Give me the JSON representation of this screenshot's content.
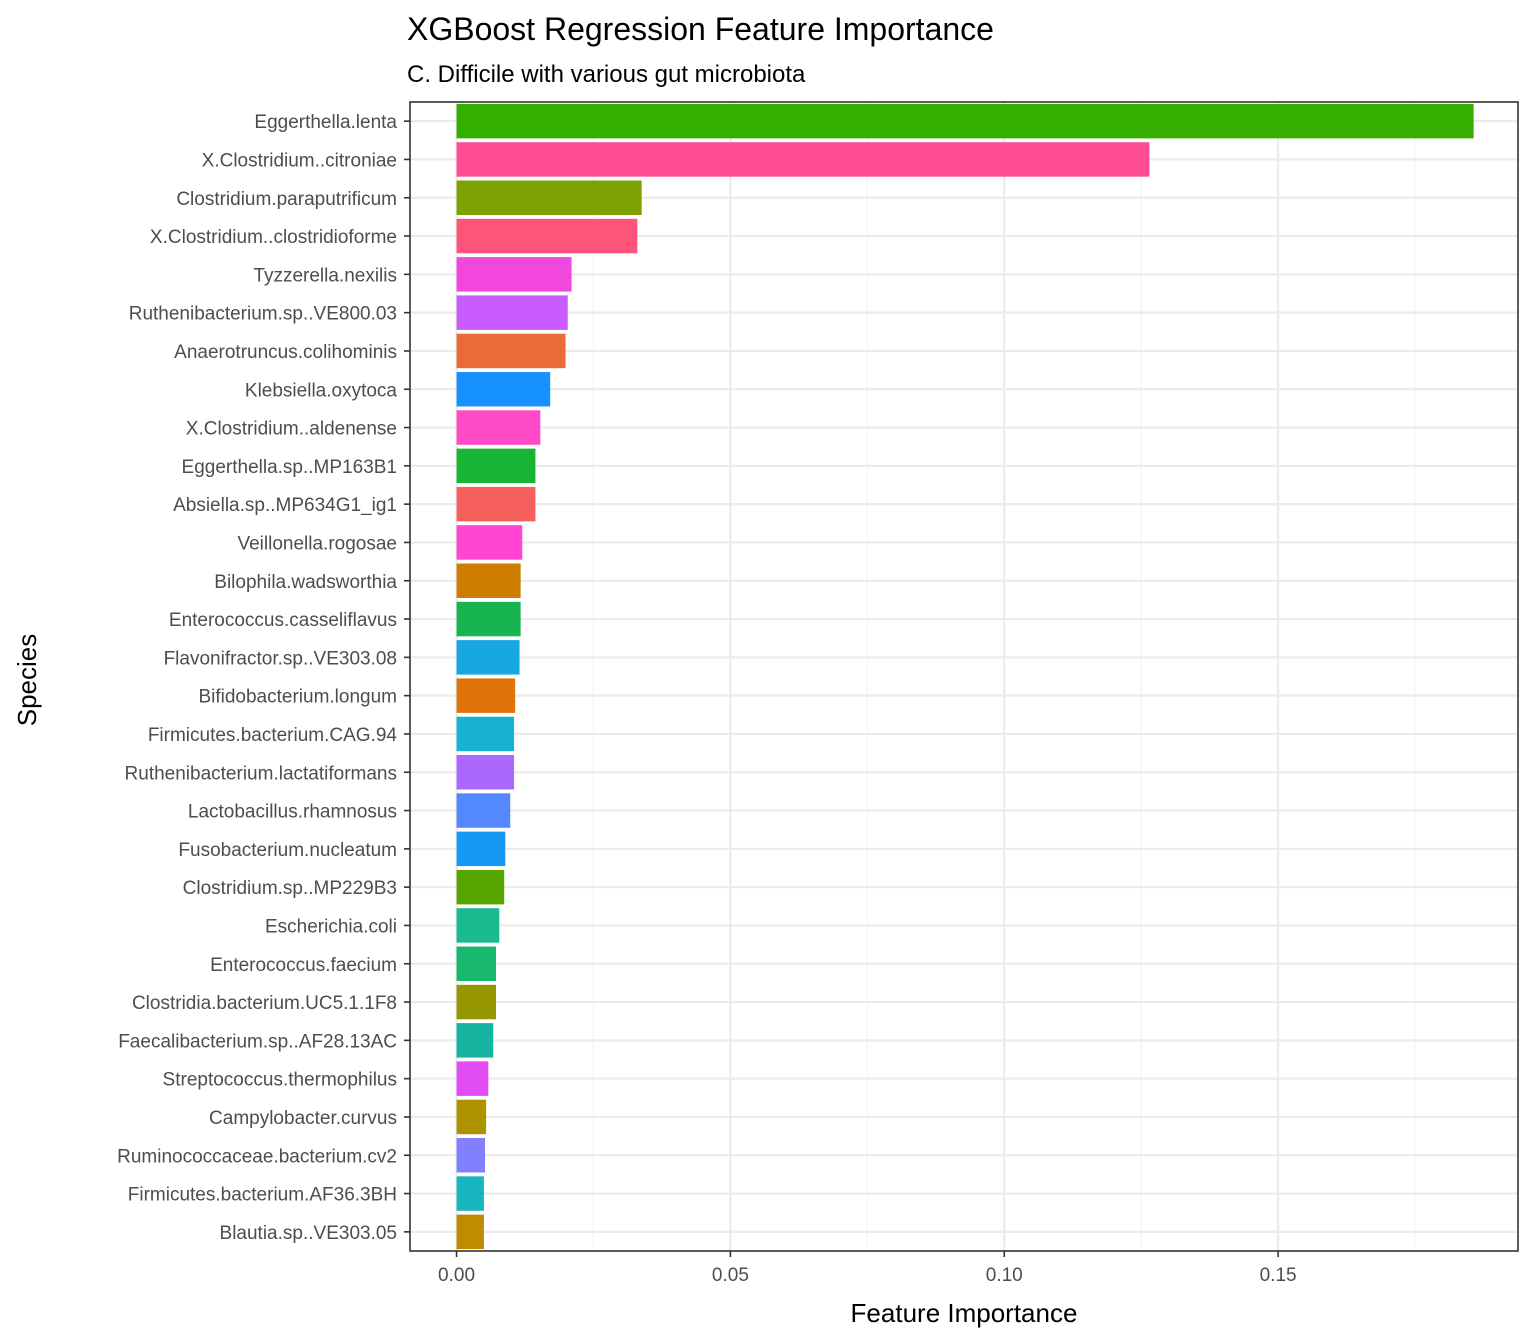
{
  "chart_data": {
    "type": "bar",
    "orientation": "horizontal",
    "title": "XGBoost Regression Feature Importance",
    "subtitle": "C. Difficile with various gut microbiota",
    "xlabel": "Feature Importance",
    "ylabel": "Species",
    "xlim": [
      -0.0085,
      0.1938
    ],
    "x_ticks": [
      0.0,
      0.05,
      0.1,
      0.15
    ],
    "x_tick_labels": [
      "0.00",
      "0.05",
      "0.10",
      "0.15"
    ],
    "grid": true,
    "legend": "none",
    "categories": [
      "Eggerthella.lenta",
      "X.Clostridium..citroniae",
      "Clostridium.paraputrificum",
      "X.Clostridium..clostridioforme",
      "Tyzzerella.nexilis",
      "Ruthenibacterium.sp..VE800.03",
      "Anaerotruncus.colihominis",
      "Klebsiella.oxytoca",
      "X.Clostridium..aldenense",
      "Eggerthella.sp..MP163B1",
      "Absiella.sp..MP634G1_ig1",
      "Veillonella.rogosae",
      "Bilophila.wadsworthia",
      "Enterococcus.casseliflavus",
      "Flavonifractor.sp..VE303.08",
      "Bifidobacterium.longum",
      "Firmicutes.bacterium.CAG.94",
      "Ruthenibacterium.lactatiformans",
      "Lactobacillus.rhamnosus",
      "Fusobacterium.nucleatum",
      "Clostridium.sp..MP229B3",
      "Escherichia.coli",
      "Enterococcus.faecium",
      "Clostridia.bacterium.UC5.1.1F8",
      "Faecalibacterium.sp..AF28.13AC",
      "Streptococcus.thermophilus",
      "Campylobacter.curvus",
      "Ruminococcaceae.bacterium.cv2",
      "Firmicutes.bacterium.AF36.3BH",
      "Blautia.sp..VE303.05"
    ],
    "values": [
      0.1857,
      0.1265,
      0.0338,
      0.033,
      0.021,
      0.0203,
      0.0199,
      0.0171,
      0.0153,
      0.0144,
      0.0144,
      0.012,
      0.0117,
      0.0117,
      0.0115,
      0.0107,
      0.0105,
      0.0105,
      0.0098,
      0.0089,
      0.0087,
      0.0078,
      0.0072,
      0.0072,
      0.0067,
      0.0058,
      0.0054,
      0.0052,
      0.005,
      0.005
    ],
    "colors": [
      "#35AE00",
      "#FF4C92",
      "#7CA100",
      "#FF5479",
      "#F147DC",
      "#C85CFF",
      "#EA6B38",
      "#1691FF",
      "#FF4BC7",
      "#18B433",
      "#F5605D",
      "#FF45D2",
      "#CE7D00",
      "#17B450",
      "#17A8E2",
      "#DE7407",
      "#17B1D2",
      "#AC67FF",
      "#5488FF",
      "#1698F5",
      "#56A600",
      "#19BA8E",
      "#18B86E",
      "#969600",
      "#17B4A1",
      "#E24CF4",
      "#AE9300",
      "#8181FF",
      "#17B6BE",
      "#BF8B00"
    ]
  }
}
